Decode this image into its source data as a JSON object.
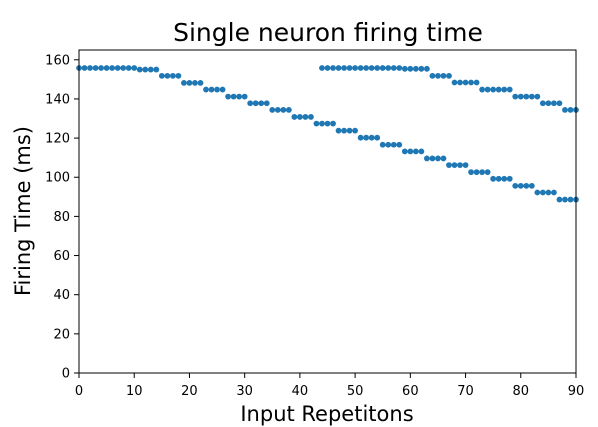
{
  "chart_data": {
    "type": "scatter",
    "title": "Single neuron firing time",
    "xlabel": "Input Repetitons",
    "ylabel": "Firing Time (ms)",
    "xlim": [
      0,
      90
    ],
    "ylim": [
      0,
      165
    ],
    "xticks": [
      0,
      10,
      20,
      30,
      40,
      50,
      60,
      70,
      80,
      90
    ],
    "yticks": [
      0,
      20,
      40,
      60,
      80,
      100,
      120,
      140,
      160
    ],
    "grid": false,
    "marker_color": "#1f77b4",
    "series": [
      {
        "x": [
          0,
          1,
          2,
          3,
          4,
          5,
          6,
          7,
          8,
          9,
          10,
          11,
          12,
          13,
          14,
          15,
          16,
          17,
          18,
          19,
          20,
          21,
          22,
          23,
          24,
          25,
          26,
          27,
          28,
          29,
          30,
          31,
          32,
          33,
          34,
          35,
          36,
          37,
          38,
          39,
          40,
          41,
          42,
          43,
          44,
          45,
          46,
          47,
          48,
          49,
          50,
          51,
          52,
          53,
          54,
          55,
          56,
          57,
          58,
          59,
          60,
          61,
          62,
          63,
          64,
          65,
          66,
          67,
          68,
          69,
          70,
          71,
          72,
          73,
          74,
          75,
          76,
          77,
          78,
          79,
          80,
          81,
          82,
          83,
          84,
          85,
          86,
          87,
          88,
          89,
          90
        ],
        "y": [
          155.8,
          155.8,
          155.8,
          155.8,
          155.8,
          155.8,
          155.8,
          155.8,
          155.8,
          155.8,
          155.8,
          155,
          155,
          155,
          155,
          151.8,
          151.8,
          151.8,
          151.8,
          148.2,
          148.2,
          148.2,
          148.2,
          144.8,
          144.8,
          144.8,
          144.8,
          141.2,
          141.2,
          141.2,
          141.2,
          137.8,
          137.8,
          137.8,
          137.8,
          134.4,
          134.4,
          134.4,
          134.4,
          130.8,
          130.8,
          130.8,
          130.8,
          127.4,
          127.4,
          127.4,
          127.4,
          123.8,
          123.8,
          123.8,
          123.8,
          120.2,
          120.2,
          120.2,
          120.2,
          116.6,
          116.6,
          116.6,
          116.6,
          113.2,
          113.2,
          113.2,
          113.2,
          109.6,
          109.6,
          109.6,
          109.6,
          106.2,
          106.2,
          106.2,
          106.2,
          102.6,
          102.6,
          102.6,
          102.6,
          99.2,
          99.2,
          99.2,
          99.2,
          95.6,
          95.6,
          95.6,
          95.6,
          92.2,
          92.2,
          92.2,
          92.2,
          88.6,
          88.6,
          88.6,
          88.6
        ]
      },
      {
        "x": [
          44,
          45,
          46,
          47,
          48,
          49,
          50,
          51,
          52,
          53,
          54,
          55,
          56,
          57,
          58,
          59,
          60,
          61,
          62,
          63,
          64,
          65,
          66,
          67,
          68,
          69,
          70,
          71,
          72,
          73,
          74,
          75,
          76,
          77,
          78,
          79,
          80,
          81,
          82,
          83,
          84,
          85,
          86,
          87,
          88,
          89,
          90
        ],
        "y": [
          155.8,
          155.8,
          155.8,
          155.8,
          155.8,
          155.8,
          155.8,
          155.8,
          155.8,
          155.8,
          155.8,
          155.8,
          155.8,
          155.8,
          155.8,
          155.4,
          155.4,
          155.4,
          155.4,
          155.4,
          151.8,
          151.8,
          151.8,
          151.8,
          148.4,
          148.4,
          148.4,
          148.4,
          148.4,
          144.8,
          144.8,
          144.8,
          144.8,
          144.8,
          144.8,
          141.2,
          141.2,
          141.2,
          141.2,
          141.2,
          137.8,
          137.8,
          137.8,
          137.8,
          134.4,
          134.4,
          134.4
        ]
      }
    ]
  }
}
